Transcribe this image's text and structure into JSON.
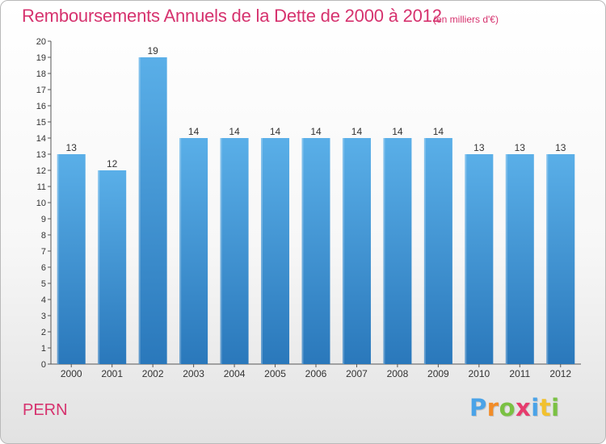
{
  "header": {
    "title": "Remboursements Annuels de la Dette de 2000 à 2012",
    "unit_note": "(en milliers d'€)"
  },
  "footer": {
    "place": "PERN",
    "logo_letters": [
      "P",
      "r",
      "o",
      "x",
      "i",
      "t",
      "i"
    ],
    "logo_colors": [
      "#4aa3e8",
      "#f28c28",
      "#7ac143",
      "#e63c6e",
      "#4aa3e8",
      "#f2c12e",
      "#7ac143"
    ]
  },
  "colors": {
    "bar_top": "#5aafe8",
    "bar_bottom": "#2a78bb",
    "axis": "#555555",
    "label": "#333333"
  },
  "chart_data": {
    "type": "bar",
    "title": "Remboursements Annuels de la Dette de 2000 à 2012",
    "subtitle": "(en milliers d'€)",
    "categories": [
      "2000",
      "2001",
      "2002",
      "2003",
      "2004",
      "2005",
      "2006",
      "2007",
      "2008",
      "2009",
      "2010",
      "2011",
      "2012"
    ],
    "values": [
      13,
      12,
      19,
      14,
      14,
      14,
      14,
      14,
      14,
      14,
      13,
      13,
      13
    ],
    "ylim": [
      0,
      20
    ],
    "yticks": [
      0,
      1,
      2,
      3,
      4,
      5,
      6,
      7,
      8,
      9,
      10,
      11,
      12,
      13,
      14,
      15,
      16,
      17,
      18,
      19,
      20
    ],
    "xlabel": "",
    "ylabel": "",
    "grid": false,
    "data_labels": true
  }
}
